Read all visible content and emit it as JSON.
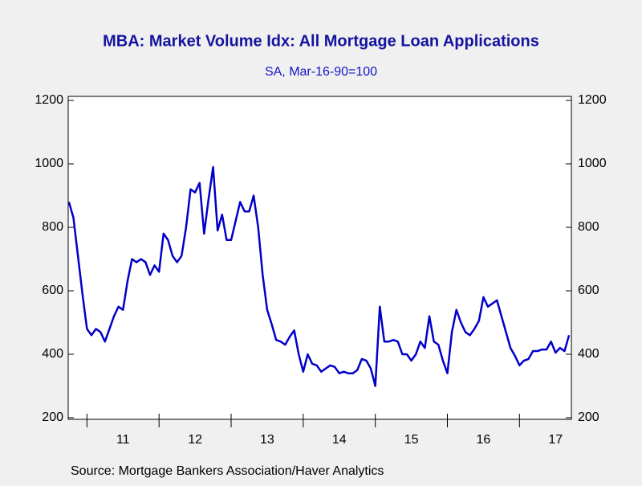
{
  "chart_data": {
    "type": "line",
    "title": "MBA: Market Volume Idx: All Mortgage Loan Applications",
    "subtitle": "SA, Mar-16-90=100",
    "source": "Source:  Mortgage Bankers Association/Haver Analytics",
    "xlim": [
      10.74,
      17.72
    ],
    "xticks": [
      11,
      12,
      13,
      14,
      15,
      16,
      17
    ],
    "ylim": [
      200,
      1200
    ],
    "yticks": [
      200,
      400,
      600,
      800,
      1000,
      1200
    ],
    "series": [
      {
        "color": "#0000c8",
        "x": [
          10.75,
          10.8125,
          10.875,
          10.9375,
          11,
          11.0625,
          11.125,
          11.1875,
          11.25,
          11.3125,
          11.375,
          11.4375,
          11.5,
          11.5625,
          11.625,
          11.6875,
          11.75,
          11.8125,
          11.875,
          11.9375,
          12,
          12.0625,
          12.125,
          12.1875,
          12.25,
          12.3125,
          12.375,
          12.4375,
          12.5,
          12.5625,
          12.625,
          12.6875,
          12.75,
          12.8125,
          12.875,
          12.9375,
          13,
          13.0625,
          13.125,
          13.1875,
          13.25,
          13.3125,
          13.375,
          13.4375,
          13.5,
          13.5625,
          13.625,
          13.6875,
          13.75,
          13.8125,
          13.875,
          13.9375,
          14,
          14.0625,
          14.125,
          14.1875,
          14.25,
          14.3125,
          14.375,
          14.4375,
          14.5,
          14.5625,
          14.625,
          14.6875,
          14.75,
          14.8125,
          14.875,
          14.9375,
          15,
          15.0625,
          15.125,
          15.1875,
          15.25,
          15.3125,
          15.375,
          15.4375,
          15.5,
          15.5625,
          15.625,
          15.6875,
          15.75,
          15.8125,
          15.875,
          15.9375,
          16,
          16.0625,
          16.125,
          16.1875,
          16.25,
          16.3125,
          16.375,
          16.4375,
          16.5,
          16.5625,
          16.625,
          16.6875,
          16.75,
          16.8125,
          16.875,
          16.9375,
          17,
          17.0625,
          17.125,
          17.1875,
          17.25,
          17.3125,
          17.375,
          17.4375,
          17.5,
          17.5625,
          17.625,
          17.6875
        ],
        "values": [
          880,
          830,
          710,
          590,
          480,
          460,
          480,
          470,
          440,
          480,
          520,
          550,
          540,
          630,
          700,
          690,
          700,
          690,
          650,
          680,
          660,
          780,
          760,
          710,
          690,
          710,
          800,
          920,
          910,
          940,
          780,
          890,
          990,
          790,
          840,
          760,
          760,
          820,
          880,
          850,
          850,
          900,
          800,
          650,
          540,
          495,
          445,
          440,
          430,
          455,
          475,
          400,
          345,
          400,
          370,
          365,
          345,
          355,
          365,
          360,
          340,
          345,
          340,
          340,
          350,
          385,
          380,
          355,
          300,
          550,
          440,
          440,
          445,
          440,
          400,
          400,
          380,
          400,
          440,
          420,
          520,
          440,
          430,
          380,
          340,
          470,
          540,
          500,
          470,
          460,
          480,
          505,
          580,
          550,
          560,
          570,
          520,
          470,
          420,
          395,
          365,
          380,
          385,
          410,
          410,
          415,
          415,
          440,
          405,
          420,
          410,
          460
        ]
      }
    ]
  }
}
